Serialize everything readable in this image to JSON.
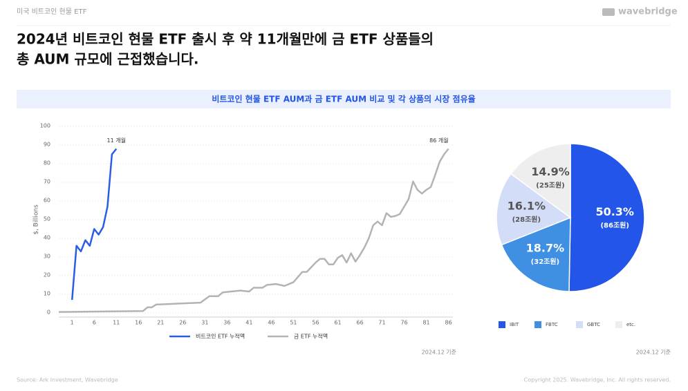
{
  "header": {
    "section": "미국 비트코인 현물 ETF",
    "logo": "wavebridge"
  },
  "title": [
    "2024년 비트코인 현물 ETF 출시 후 약 11개월만에 금 ETF 상품들의",
    "총 AUM 규모에 근접했습니다."
  ],
  "banner": "비트코인 현물 ETF AUM과 금 ETF AUM 비교 및 각 상품의 시장 점유율",
  "footer": {
    "source": "Source: Ark Investment, Wavebridge",
    "copyright": "Copyright 2025. Wavebridge, Inc. All rights reserved."
  },
  "chart_data": [
    {
      "type": "line",
      "y_label": "$, Billions",
      "note": "2024.12 기준",
      "xlim": [
        -2,
        87
      ],
      "ylim": [
        0,
        100
      ],
      "xticks": [
        1,
        6,
        11,
        16,
        21,
        26,
        31,
        36,
        41,
        46,
        51,
        56,
        61,
        66,
        71,
        76,
        81,
        86
      ],
      "yticks": [
        0,
        10,
        20,
        30,
        40,
        50,
        60,
        70,
        80,
        90,
        100
      ],
      "grid": true,
      "series": [
        {
          "name": "비트코인 ETF 누적액",
          "color": "#2b5ce6",
          "end_label": "11 개월",
          "x": [
            1,
            2,
            3,
            4,
            5,
            6,
            7,
            8,
            9,
            10,
            11
          ],
          "values": [
            7,
            36,
            33,
            39,
            36,
            45,
            42,
            46,
            57,
            85,
            88
          ]
        },
        {
          "name": "금 ETF 누적액",
          "color": "#b3b3b3",
          "end_label": "86 개월",
          "x": [
            -2,
            17,
            18,
            19,
            20,
            30,
            32,
            34,
            35,
            39,
            41,
            42,
            44,
            45,
            47,
            49,
            51,
            53,
            54,
            56,
            57,
            58,
            59,
            60,
            61,
            62,
            63,
            64,
            65,
            66,
            67,
            68,
            69,
            70,
            71,
            72,
            73,
            74,
            75,
            76,
            77,
            78,
            79,
            80,
            81,
            82,
            83,
            84,
            85,
            86
          ],
          "values": [
            0.5,
            1,
            3,
            3,
            4.5,
            5.5,
            9,
            9,
            11,
            12,
            11.5,
            13.5,
            13.5,
            15,
            15.5,
            14.5,
            16.5,
            22,
            22,
            27,
            29,
            29,
            26,
            26,
            29.5,
            31,
            27,
            32,
            27.5,
            31,
            35,
            40,
            47,
            49,
            47,
            53.5,
            51.5,
            52,
            53,
            57,
            61,
            70.5,
            66,
            64,
            66,
            67.5,
            74,
            81,
            85,
            88
          ]
        }
      ]
    },
    {
      "type": "pie",
      "note": "2024.12 기준",
      "categories": [
        "IBIT",
        "FBTC",
        "GBTC",
        "etc."
      ],
      "values": [
        50.3,
        18.7,
        16.1,
        14.9
      ],
      "value_labels": [
        "50.3%",
        "18.7%",
        "16.1%",
        "14.9%"
      ],
      "amount_labels": [
        "(86조원)",
        "(32조원)",
        "(28조원)",
        "(25조원)"
      ],
      "colors": [
        "#2356e8",
        "#3f8fe3",
        "#d3ddf8",
        "#eeeeee"
      ],
      "label_colors": [
        "#ffffff",
        "#ffffff",
        "#555555",
        "#555555"
      ]
    }
  ]
}
